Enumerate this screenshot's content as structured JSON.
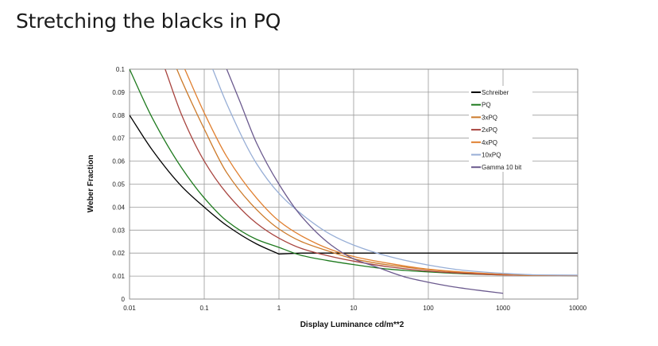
{
  "slide": {
    "title": "Stretching the blacks in PQ"
  },
  "chart_data": {
    "type": "line",
    "title": "",
    "xlabel": "Display Luminance cd/m**2",
    "ylabel": "Weber Fraction",
    "x_scale": "log",
    "xlim": [
      0.01,
      10000
    ],
    "ylim": [
      0,
      0.1
    ],
    "x_ticks": [
      0.01,
      0.1,
      1,
      10,
      100,
      1000,
      10000
    ],
    "x_tick_labels": [
      "0.01",
      "0.1",
      "1",
      "10",
      "100",
      "1000",
      "10000"
    ],
    "y_ticks": [
      0,
      0.01,
      0.02,
      0.03,
      0.04,
      0.05,
      0.06,
      0.07,
      0.08,
      0.09,
      0.1
    ],
    "y_tick_labels": [
      "0",
      "0.01",
      "0.02",
      "0.03",
      "0.04",
      "0.05",
      "0.06",
      "0.07",
      "0.08",
      "0.09",
      "0.1"
    ],
    "grid": true,
    "legend_position": "top-right",
    "series": [
      {
        "name": "Schreiber",
        "color": "#000000",
        "points": [
          [
            0.01,
            0.08
          ],
          [
            0.02,
            0.065
          ],
          [
            0.05,
            0.049
          ],
          [
            0.1,
            0.04
          ],
          [
            0.2,
            0.032
          ],
          [
            0.5,
            0.024
          ],
          [
            1,
            0.0196
          ],
          [
            2,
            0.02
          ],
          [
            10,
            0.02
          ],
          [
            100,
            0.02
          ],
          [
            1000,
            0.02
          ],
          [
            10000,
            0.02
          ]
        ]
      },
      {
        "name": "PQ",
        "color": "#1e7a1e",
        "points": [
          [
            0.01,
            0.1
          ],
          [
            0.02,
            0.079
          ],
          [
            0.05,
            0.057
          ],
          [
            0.1,
            0.044
          ],
          [
            0.2,
            0.034
          ],
          [
            0.5,
            0.026
          ],
          [
            1,
            0.0225
          ],
          [
            2,
            0.019
          ],
          [
            5,
            0.0165
          ],
          [
            10,
            0.015
          ],
          [
            30,
            0.013
          ],
          [
            100,
            0.0118
          ],
          [
            300,
            0.011
          ],
          [
            1000,
            0.0105
          ],
          [
            3000,
            0.0103
          ],
          [
            10000,
            0.0102
          ]
        ]
      },
      {
        "name": "3xPQ",
        "color": "#cc7a2a",
        "points": [
          [
            0.043,
            0.1
          ],
          [
            0.05,
            0.095
          ],
          [
            0.1,
            0.074
          ],
          [
            0.2,
            0.055
          ],
          [
            0.5,
            0.039
          ],
          [
            1,
            0.0305
          ],
          [
            2,
            0.025
          ],
          [
            5,
            0.0205
          ],
          [
            10,
            0.0175
          ],
          [
            30,
            0.0148
          ],
          [
            100,
            0.0128
          ],
          [
            300,
            0.0115
          ],
          [
            1000,
            0.0106
          ],
          [
            3000,
            0.0103
          ],
          [
            10000,
            0.0103
          ]
        ]
      },
      {
        "name": "2xPQ",
        "color": "#a8443f",
        "points": [
          [
            0.03,
            0.1
          ],
          [
            0.05,
            0.08
          ],
          [
            0.1,
            0.06
          ],
          [
            0.2,
            0.046
          ],
          [
            0.5,
            0.033
          ],
          [
            1,
            0.0265
          ],
          [
            2,
            0.022
          ],
          [
            5,
            0.0185
          ],
          [
            10,
            0.0165
          ],
          [
            30,
            0.014
          ],
          [
            100,
            0.0122
          ],
          [
            300,
            0.0112
          ],
          [
            1000,
            0.0105
          ],
          [
            3000,
            0.0103
          ],
          [
            10000,
            0.0102
          ]
        ]
      },
      {
        "name": "4xPQ",
        "color": "#e07f2f",
        "points": [
          [
            0.055,
            0.1
          ],
          [
            0.1,
            0.081
          ],
          [
            0.2,
            0.062
          ],
          [
            0.5,
            0.044
          ],
          [
            1,
            0.034
          ],
          [
            2,
            0.0275
          ],
          [
            5,
            0.0215
          ],
          [
            10,
            0.0185
          ],
          [
            30,
            0.0155
          ],
          [
            100,
            0.013
          ],
          [
            300,
            0.0117
          ],
          [
            1000,
            0.0108
          ],
          [
            3000,
            0.0103
          ],
          [
            10000,
            0.0103
          ]
        ]
      },
      {
        "name": "10xPQ",
        "color": "#97aed6",
        "points": [
          [
            0.13,
            0.1
          ],
          [
            0.2,
            0.085
          ],
          [
            0.5,
            0.059
          ],
          [
            1,
            0.046
          ],
          [
            2,
            0.037
          ],
          [
            5,
            0.028
          ],
          [
            10,
            0.0235
          ],
          [
            30,
            0.0185
          ],
          [
            100,
            0.0148
          ],
          [
            300,
            0.0125
          ],
          [
            1000,
            0.0112
          ],
          [
            3000,
            0.0105
          ],
          [
            10000,
            0.0104
          ]
        ]
      },
      {
        "name": "Gamma 10 bit",
        "color": "#6b5a8e",
        "points": [
          [
            0.2,
            0.1
          ],
          [
            0.3,
            0.086
          ],
          [
            0.5,
            0.068
          ],
          [
            1,
            0.05
          ],
          [
            2,
            0.036
          ],
          [
            5,
            0.0235
          ],
          [
            10,
            0.0175
          ],
          [
            20,
            0.014
          ],
          [
            50,
            0.0095
          ],
          [
            100,
            0.0073
          ],
          [
            200,
            0.0055
          ],
          [
            500,
            0.0037
          ],
          [
            1000,
            0.0025
          ]
        ]
      }
    ]
  }
}
